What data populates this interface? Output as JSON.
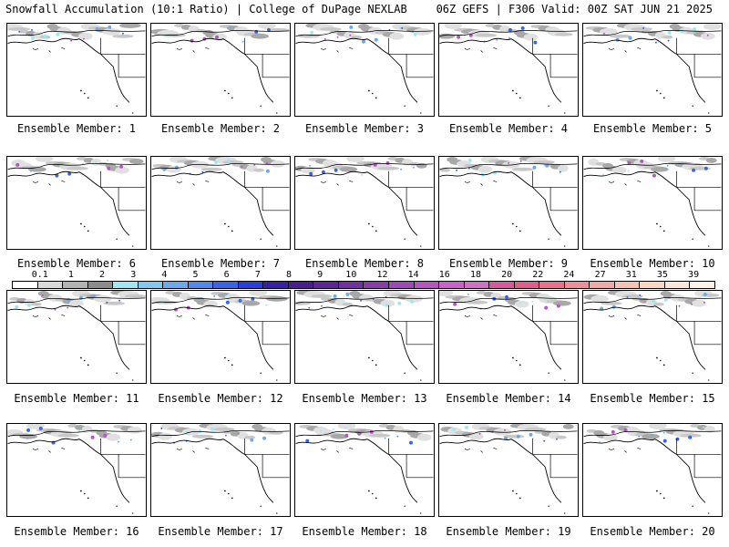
{
  "header": {
    "title_left": "Snowfall Accumulation (10:1 Ratio) | College of DuPage NEXLAB",
    "title_right": "06Z GEFS | F306 Valid: 00Z SAT JUN 21 2025"
  },
  "members": [
    {
      "label": "Ensemble Member: 1"
    },
    {
      "label": "Ensemble Member: 2"
    },
    {
      "label": "Ensemble Member: 3"
    },
    {
      "label": "Ensemble Member: 4"
    },
    {
      "label": "Ensemble Member: 5"
    },
    {
      "label": "Ensemble Member: 6"
    },
    {
      "label": "Ensemble Member: 7"
    },
    {
      "label": "Ensemble Member: 8"
    },
    {
      "label": "Ensemble Member: 9"
    },
    {
      "label": "Ensemble Member: 10"
    },
    {
      "label": "Ensemble Member: 11"
    },
    {
      "label": "Ensemble Member: 12"
    },
    {
      "label": "Ensemble Member: 13"
    },
    {
      "label": "Ensemble Member: 14"
    },
    {
      "label": "Ensemble Member: 15"
    },
    {
      "label": "Ensemble Member: 16"
    },
    {
      "label": "Ensemble Member: 17"
    },
    {
      "label": "Ensemble Member: 18"
    },
    {
      "label": "Ensemble Member: 19"
    },
    {
      "label": "Ensemble Member: 20"
    }
  ],
  "colorbar": {
    "labels": [
      "0.1",
      "1",
      "2",
      "3",
      "4",
      "5",
      "6",
      "7",
      "8",
      "9",
      "10",
      "12",
      "14",
      "16",
      "18",
      "20",
      "22",
      "24",
      "27",
      "31",
      "35",
      "39"
    ],
    "colors": [
      "#ffffff",
      "#d9d9d9",
      "#b3b3b3",
      "#8c8c8c",
      "#9ee8f5",
      "#7fc8f2",
      "#6ba9ee",
      "#5288ea",
      "#3a64e6",
      "#2a3ee0",
      "#3a1fa8",
      "#4b1d8f",
      "#5e2697",
      "#7330a1",
      "#8a3cad",
      "#9f48b8",
      "#b455c2",
      "#c863cc",
      "#d070c6",
      "#d8579e",
      "#e05e8c",
      "#e8728e",
      "#ee8e98",
      "#f2a8a6",
      "#f5c2b4",
      "#f8d7c4",
      "#fbe7d6",
      "#fdf3e8"
    ]
  }
}
